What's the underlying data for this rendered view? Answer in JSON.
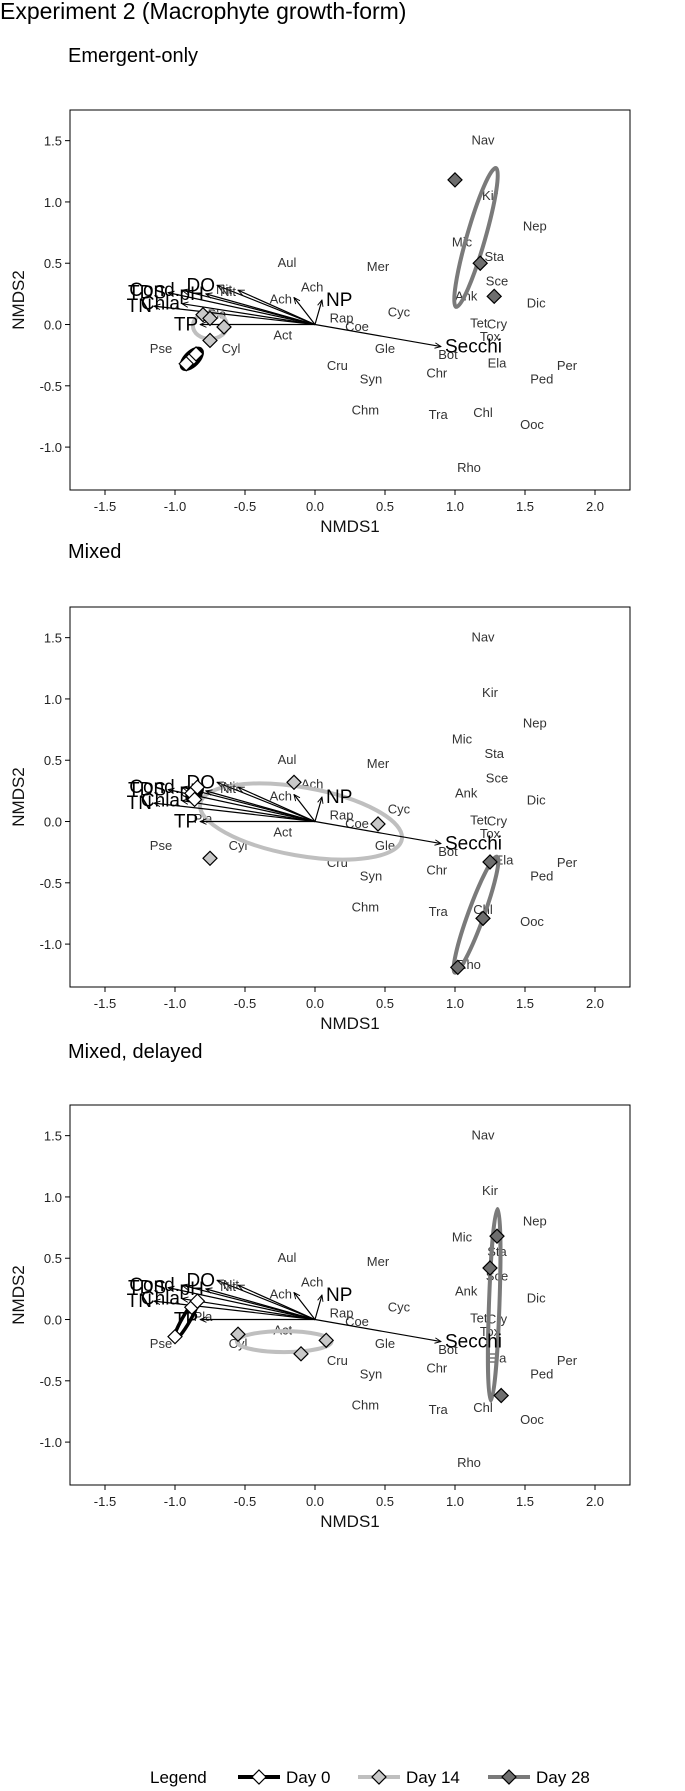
{
  "figure_title": "Experiment 2 (Macrophyte growth-form)",
  "colors": {
    "day0": "#ffffff",
    "day14": "#c8c8c8",
    "day28": "#6e6e6e",
    "ell_day0": "#000000",
    "ell_day14": "#bfbfbf",
    "ell_day28": "#7a7a7a"
  },
  "legend": {
    "title": "Legend",
    "items": [
      {
        "key": "day0",
        "label": "Day 0"
      },
      {
        "key": "day14",
        "label": "Day 14"
      },
      {
        "key": "day28",
        "label": "Day 28"
      }
    ]
  },
  "chart_data": [
    {
      "type": "scatter",
      "title": "Emergent-only",
      "xlabel": "NMDS1",
      "ylabel": "NMDS2",
      "xlim": [
        -1.75,
        2.25
      ],
      "ylim": [
        -1.35,
        1.75
      ],
      "xticks": [
        -1.5,
        -1.0,
        -0.5,
        0.0,
        0.5,
        1.0,
        1.5,
        2.0
      ],
      "yticks": [
        1.5,
        1.0,
        0.5,
        0.0,
        -0.5,
        -1.0
      ],
      "species": [
        {
          "label": "Nav",
          "x": 1.2,
          "y": 1.5
        },
        {
          "label": "Kir",
          "x": 1.25,
          "y": 1.05
        },
        {
          "label": "Nep",
          "x": 1.57,
          "y": 0.8
        },
        {
          "label": "Mic",
          "x": 1.05,
          "y": 0.67
        },
        {
          "label": "Sta",
          "x": 1.28,
          "y": 0.55
        },
        {
          "label": "Sce",
          "x": 1.3,
          "y": 0.35
        },
        {
          "label": "Dic",
          "x": 1.58,
          "y": 0.17
        },
        {
          "label": "Ank",
          "x": 1.08,
          "y": 0.23
        },
        {
          "label": "Tet",
          "x": 1.17,
          "y": 0.01
        },
        {
          "label": "Cry",
          "x": 1.3,
          "y": 0.0
        },
        {
          "label": "Tox",
          "x": 1.25,
          "y": -0.1
        },
        {
          "label": "Ela",
          "x": 1.3,
          "y": -0.32
        },
        {
          "label": "Per",
          "x": 1.8,
          "y": -0.34
        },
        {
          "label": "Ped",
          "x": 1.62,
          "y": -0.45
        },
        {
          "label": "Bot",
          "x": 0.95,
          "y": -0.25
        },
        {
          "label": "Chr",
          "x": 0.87,
          "y": -0.4
        },
        {
          "label": "Chl",
          "x": 1.2,
          "y": -0.72
        },
        {
          "label": "Ooc",
          "x": 1.55,
          "y": -0.82
        },
        {
          "label": "Tra",
          "x": 0.88,
          "y": -0.74
        },
        {
          "label": "Rho",
          "x": 1.1,
          "y": -1.17
        },
        {
          "label": "Mer",
          "x": 0.45,
          "y": 0.47
        },
        {
          "label": "Aul",
          "x": -0.2,
          "y": 0.5
        },
        {
          "label": "Cyc",
          "x": 0.6,
          "y": 0.1
        },
        {
          "label": "Gle",
          "x": 0.5,
          "y": -0.2
        },
        {
          "label": "Cru",
          "x": 0.16,
          "y": -0.34
        },
        {
          "label": "Syn",
          "x": 0.4,
          "y": -0.45
        },
        {
          "label": "Chm",
          "x": 0.36,
          "y": -0.7
        },
        {
          "label": "Ach",
          "x": -0.02,
          "y": 0.3
        },
        {
          "label": "Rap",
          "x": 0.19,
          "y": 0.05
        },
        {
          "label": "Coe",
          "x": 0.3,
          "y": -0.02
        },
        {
          "label": "Act",
          "x": -0.23,
          "y": -0.09
        },
        {
          "label": "Cyl",
          "x": -0.6,
          "y": -0.2
        },
        {
          "label": "Pse",
          "x": -1.1,
          "y": -0.2
        },
        {
          "label": "Nit",
          "x": -0.65,
          "y": 0.28
        },
        {
          "label": "Pla",
          "x": -0.7,
          "y": 0.08
        }
      ],
      "vectors": [
        {
          "label": "DO",
          "x": -0.7,
          "y": 0.32
        },
        {
          "label": "pH",
          "x": -0.78,
          "y": 0.25
        },
        {
          "label": "TDS",
          "x": -1.05,
          "y": 0.26
        },
        {
          "label": "Cond.",
          "x": -0.95,
          "y": 0.28
        },
        {
          "label": "TN",
          "x": -1.15,
          "y": 0.15
        },
        {
          "label": "Chla",
          "x": -0.95,
          "y": 0.17
        },
        {
          "label": "TP",
          "x": -0.82,
          "y": 0.0
        },
        {
          "label": "NP",
          "x": 0.05,
          "y": 0.2
        },
        {
          "label": "Nit",
          "x": -0.55,
          "y": 0.28
        },
        {
          "label": "Ach",
          "x": -0.15,
          "y": 0.22
        },
        {
          "label": "Secchi",
          "x": 0.9,
          "y": -0.18
        }
      ],
      "series": [
        {
          "name": "Day 0",
          "points": [
            {
              "x": -0.92,
              "y": -0.32
            },
            {
              "x": -0.85,
              "y": -0.24
            }
          ],
          "ellipse": {
            "cx": -0.88,
            "cy": -0.28,
            "rx": 0.1,
            "ry": 0.05,
            "angle": -45
          }
        },
        {
          "name": "Day 14",
          "points": [
            {
              "x": -0.8,
              "y": 0.08
            },
            {
              "x": -0.75,
              "y": 0.05
            },
            {
              "x": -0.65,
              "y": -0.02
            },
            {
              "x": -0.75,
              "y": -0.13
            }
          ],
          "ellipse": {
            "cx": -0.75,
            "cy": -0.01,
            "rx": 0.13,
            "ry": 0.1,
            "angle": 0
          }
        },
        {
          "name": "Day 28",
          "points": [
            {
              "x": 1.0,
              "y": 1.18
            },
            {
              "x": 1.18,
              "y": 0.5
            },
            {
              "x": 1.28,
              "y": 0.23
            }
          ],
          "ellipse": {
            "cx": 1.15,
            "cy": 0.71,
            "rx": 0.55,
            "ry": 0.07,
            "angle": -74
          }
        }
      ]
    },
    {
      "type": "scatter",
      "title": "Mixed",
      "xlabel": "NMDS1",
      "ylabel": "NMDS2",
      "xlim": [
        -1.75,
        2.25
      ],
      "ylim": [
        -1.35,
        1.75
      ],
      "xticks": [
        -1.5,
        -1.0,
        -0.5,
        0.0,
        0.5,
        1.0,
        1.5,
        2.0
      ],
      "yticks": [
        1.5,
        1.0,
        0.5,
        0.0,
        -0.5,
        -1.0
      ],
      "species": [
        {
          "label": "Nav",
          "x": 1.2,
          "y": 1.5
        },
        {
          "label": "Kir",
          "x": 1.25,
          "y": 1.05
        },
        {
          "label": "Nep",
          "x": 1.57,
          "y": 0.8
        },
        {
          "label": "Mic",
          "x": 1.05,
          "y": 0.67
        },
        {
          "label": "Sta",
          "x": 1.28,
          "y": 0.55
        },
        {
          "label": "Sce",
          "x": 1.3,
          "y": 0.35
        },
        {
          "label": "Dic",
          "x": 1.58,
          "y": 0.17
        },
        {
          "label": "Ank",
          "x": 1.08,
          "y": 0.23
        },
        {
          "label": "Tet",
          "x": 1.17,
          "y": 0.01
        },
        {
          "label": "Cry",
          "x": 1.3,
          "y": 0.0
        },
        {
          "label": "Tox",
          "x": 1.25,
          "y": -0.1
        },
        {
          "label": "Ela",
          "x": 1.35,
          "y": -0.32
        },
        {
          "label": "Per",
          "x": 1.8,
          "y": -0.34
        },
        {
          "label": "Ped",
          "x": 1.62,
          "y": -0.45
        },
        {
          "label": "Bot",
          "x": 0.95,
          "y": -0.25
        },
        {
          "label": "Chr",
          "x": 0.87,
          "y": -0.4
        },
        {
          "label": "Chl",
          "x": 1.2,
          "y": -0.72
        },
        {
          "label": "Ooc",
          "x": 1.55,
          "y": -0.82
        },
        {
          "label": "Tra",
          "x": 0.88,
          "y": -0.74
        },
        {
          "label": "Rho",
          "x": 1.1,
          "y": -1.17
        },
        {
          "label": "Mer",
          "x": 0.45,
          "y": 0.47
        },
        {
          "label": "Aul",
          "x": -0.2,
          "y": 0.5
        },
        {
          "label": "Cyc",
          "x": 0.6,
          "y": 0.1
        },
        {
          "label": "Gle",
          "x": 0.5,
          "y": -0.2
        },
        {
          "label": "Cru",
          "x": 0.16,
          "y": -0.34
        },
        {
          "label": "Syn",
          "x": 0.4,
          "y": -0.45
        },
        {
          "label": "Chm",
          "x": 0.36,
          "y": -0.7
        },
        {
          "label": "Ach",
          "x": -0.02,
          "y": 0.3
        },
        {
          "label": "Rap",
          "x": 0.19,
          "y": 0.05
        },
        {
          "label": "Coe",
          "x": 0.3,
          "y": -0.02
        },
        {
          "label": "Act",
          "x": -0.23,
          "y": -0.09
        },
        {
          "label": "Cyl",
          "x": -0.55,
          "y": -0.2
        },
        {
          "label": "Pse",
          "x": -1.1,
          "y": -0.2
        },
        {
          "label": "Nit",
          "x": -0.6,
          "y": 0.28
        },
        {
          "label": "Pla",
          "x": -0.8,
          "y": 0.02
        }
      ],
      "vectors": [
        {
          "label": "DO",
          "x": -0.7,
          "y": 0.32
        },
        {
          "label": "pH",
          "x": -0.78,
          "y": 0.25
        },
        {
          "label": "TDS",
          "x": -1.05,
          "y": 0.26
        },
        {
          "label": "Cond.",
          "x": -0.95,
          "y": 0.28
        },
        {
          "label": "TN",
          "x": -1.15,
          "y": 0.15
        },
        {
          "label": "Chla",
          "x": -0.95,
          "y": 0.17
        },
        {
          "label": "TP",
          "x": -0.82,
          "y": 0.0
        },
        {
          "label": "NP",
          "x": 0.05,
          "y": 0.2
        },
        {
          "label": "Nit",
          "x": -0.55,
          "y": 0.28
        },
        {
          "label": "Ach",
          "x": -0.15,
          "y": 0.22
        },
        {
          "label": "Secchi",
          "x": 0.9,
          "y": -0.18
        }
      ],
      "series": [
        {
          "name": "Day 0",
          "points": [
            {
              "x": -0.88,
              "y": 0.23
            },
            {
              "x": -0.84,
              "y": 0.28
            },
            {
              "x": -0.86,
              "y": 0.18
            }
          ],
          "ellipse": {
            "cx": -0.86,
            "cy": 0.23,
            "rx": 0.07,
            "ry": 0.04,
            "angle": -45
          }
        },
        {
          "name": "Day 14",
          "points": [
            {
              "x": -0.15,
              "y": 0.32
            },
            {
              "x": 0.45,
              "y": -0.02
            },
            {
              "x": -0.75,
              "y": -0.3
            }
          ],
          "ellipse": {
            "cx": -0.1,
            "cy": 0.0,
            "rx": 0.78,
            "ry": 0.26,
            "angle": 10
          }
        },
        {
          "name": "Day 28",
          "points": [
            {
              "x": 1.25,
              "y": -0.33
            },
            {
              "x": 1.2,
              "y": -0.79
            },
            {
              "x": 1.02,
              "y": -1.19
            }
          ],
          "ellipse": {
            "cx": 1.15,
            "cy": -0.76,
            "rx": 0.47,
            "ry": 0.06,
            "angle": -70
          }
        }
      ]
    },
    {
      "type": "scatter",
      "title": "Mixed, delayed",
      "xlabel": "NMDS1",
      "ylabel": "NMDS2",
      "xlim": [
        -1.75,
        2.25
      ],
      "ylim": [
        -1.35,
        1.75
      ],
      "xticks": [
        -1.5,
        -1.0,
        -0.5,
        0.0,
        0.5,
        1.0,
        1.5,
        2.0
      ],
      "yticks": [
        1.5,
        1.0,
        0.5,
        0.0,
        -0.5,
        -1.0
      ],
      "species": [
        {
          "label": "Nav",
          "x": 1.2,
          "y": 1.5
        },
        {
          "label": "Kir",
          "x": 1.25,
          "y": 1.05
        },
        {
          "label": "Nep",
          "x": 1.57,
          "y": 0.8
        },
        {
          "label": "Mic",
          "x": 1.05,
          "y": 0.67
        },
        {
          "label": "Sta",
          "x": 1.3,
          "y": 0.55
        },
        {
          "label": "Sce",
          "x": 1.3,
          "y": 0.35
        },
        {
          "label": "Dic",
          "x": 1.58,
          "y": 0.17
        },
        {
          "label": "Ank",
          "x": 1.08,
          "y": 0.23
        },
        {
          "label": "Tet",
          "x": 1.17,
          "y": 0.01
        },
        {
          "label": "Cry",
          "x": 1.3,
          "y": 0.0
        },
        {
          "label": "Tox",
          "x": 1.25,
          "y": -0.1
        },
        {
          "label": "Ela",
          "x": 1.3,
          "y": -0.32
        },
        {
          "label": "Per",
          "x": 1.8,
          "y": -0.34
        },
        {
          "label": "Ped",
          "x": 1.62,
          "y": -0.45
        },
        {
          "label": "Bot",
          "x": 0.95,
          "y": -0.25
        },
        {
          "label": "Chr",
          "x": 0.87,
          "y": -0.4
        },
        {
          "label": "Chl",
          "x": 1.2,
          "y": -0.72
        },
        {
          "label": "Ooc",
          "x": 1.55,
          "y": -0.82
        },
        {
          "label": "Tra",
          "x": 0.88,
          "y": -0.74
        },
        {
          "label": "Rho",
          "x": 1.1,
          "y": -1.17
        },
        {
          "label": "Mer",
          "x": 0.45,
          "y": 0.47
        },
        {
          "label": "Aul",
          "x": -0.2,
          "y": 0.5
        },
        {
          "label": "Cyc",
          "x": 0.6,
          "y": 0.1
        },
        {
          "label": "Gle",
          "x": 0.5,
          "y": -0.2
        },
        {
          "label": "Cru",
          "x": 0.16,
          "y": -0.34
        },
        {
          "label": "Syn",
          "x": 0.4,
          "y": -0.45
        },
        {
          "label": "Chm",
          "x": 0.36,
          "y": -0.7
        },
        {
          "label": "Ach",
          "x": -0.02,
          "y": 0.3
        },
        {
          "label": "Rap",
          "x": 0.19,
          "y": 0.05
        },
        {
          "label": "Coe",
          "x": 0.3,
          "y": -0.02
        },
        {
          "label": "Act",
          "x": -0.23,
          "y": -0.09
        },
        {
          "label": "Cyl",
          "x": -0.55,
          "y": -0.2
        },
        {
          "label": "Pse",
          "x": -1.1,
          "y": -0.2
        },
        {
          "label": "Nit",
          "x": -0.6,
          "y": 0.28
        },
        {
          "label": "Pla",
          "x": -0.8,
          "y": 0.02
        }
      ],
      "vectors": [
        {
          "label": "DO",
          "x": -0.7,
          "y": 0.32
        },
        {
          "label": "pH",
          "x": -0.78,
          "y": 0.25
        },
        {
          "label": "TDS",
          "x": -1.05,
          "y": 0.26
        },
        {
          "label": "Cond.",
          "x": -0.95,
          "y": 0.28
        },
        {
          "label": "TN",
          "x": -1.15,
          "y": 0.15
        },
        {
          "label": "Chla",
          "x": -0.95,
          "y": 0.17
        },
        {
          "label": "TP",
          "x": -0.82,
          "y": 0.0
        },
        {
          "label": "NP",
          "x": 0.05,
          "y": 0.2
        },
        {
          "label": "Nit",
          "x": -0.55,
          "y": 0.28
        },
        {
          "label": "Ach",
          "x": -0.15,
          "y": 0.22
        },
        {
          "label": "Secchi",
          "x": 0.9,
          "y": -0.18
        }
      ],
      "series": [
        {
          "name": "Day 0",
          "points": [
            {
              "x": -1.0,
              "y": -0.14
            },
            {
              "x": -0.88,
              "y": 0.1
            },
            {
              "x": -0.84,
              "y": 0.15
            }
          ],
          "ellipse": {
            "cx": -0.92,
            "cy": 0.0,
            "rx": 0.18,
            "ry": 0.03,
            "angle": -60
          }
        },
        {
          "name": "Day 14",
          "points": [
            {
              "x": -0.55,
              "y": -0.12
            },
            {
              "x": -0.1,
              "y": -0.28
            },
            {
              "x": 0.08,
              "y": -0.17
            }
          ],
          "ellipse": {
            "cx": -0.22,
            "cy": -0.18,
            "rx": 0.36,
            "ry": 0.08,
            "angle": 0
          }
        },
        {
          "name": "Day 28",
          "points": [
            {
              "x": 1.3,
              "y": 0.68
            },
            {
              "x": 1.25,
              "y": 0.42
            },
            {
              "x": 1.33,
              "y": -0.62
            }
          ],
          "ellipse": {
            "cx": 1.28,
            "cy": 0.12,
            "rx": 0.73,
            "ry": 0.04,
            "angle": -88
          }
        }
      ]
    }
  ]
}
